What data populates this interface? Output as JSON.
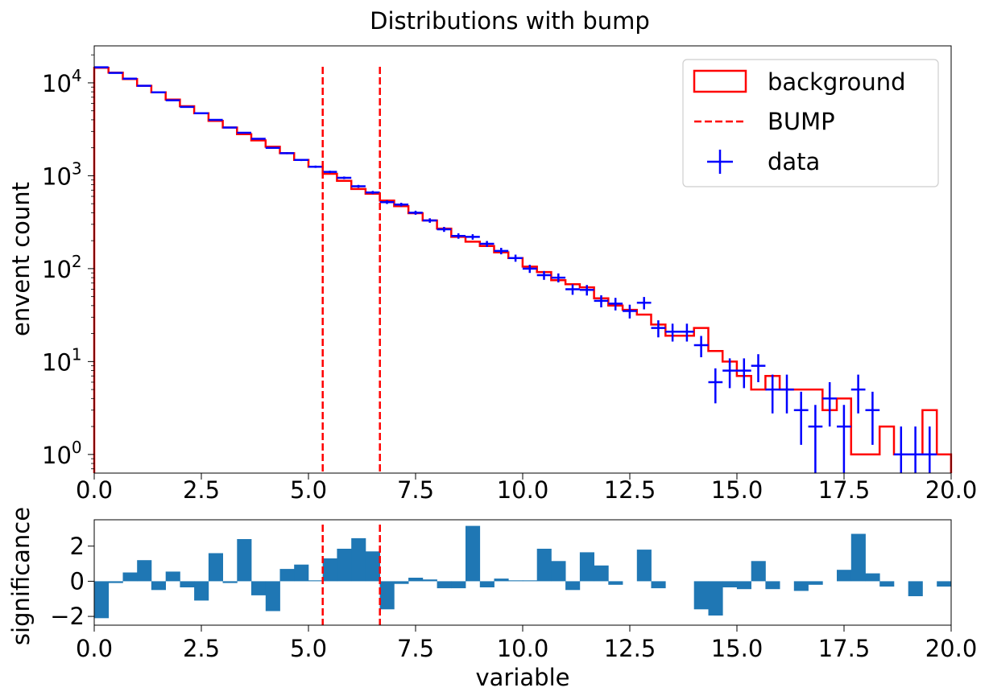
{
  "chart_data": [
    {
      "type": "step-histogram",
      "title": "Distributions with bump",
      "ylabel": "envent count",
      "yscale": "log",
      "xlim": [
        0,
        20
      ],
      "ylim": [
        0.63,
        25000
      ],
      "x_ticks": [
        "0.0",
        "2.5",
        "5.0",
        "7.5",
        "10.0",
        "12.5",
        "15.0",
        "17.5",
        "20.0"
      ],
      "y_ticks": [
        {
          "base": "10",
          "exp": "0"
        },
        {
          "base": "10",
          "exp": "1"
        },
        {
          "base": "10",
          "exp": "2"
        },
        {
          "base": "10",
          "exp": "3"
        },
        {
          "base": "10",
          "exp": "4"
        }
      ],
      "legend": {
        "placement": "top-right",
        "entries": [
          {
            "label": "background",
            "style": "red-rect-outline"
          },
          {
            "label": "BUMP",
            "style": "red-dashed-line"
          },
          {
            "label": "data",
            "style": "blue-errorbar"
          }
        ]
      },
      "bin_width": 0.3333,
      "background_counts": [
        14500,
        12900,
        11000,
        9300,
        7900,
        6600,
        5600,
        4700,
        3900,
        3300,
        2800,
        2400,
        2050,
        1750,
        1480,
        1250,
        1050,
        880,
        720,
        640,
        540,
        470,
        395,
        330,
        270,
        220,
        195,
        175,
        150,
        130,
        105,
        92,
        75,
        68,
        63,
        48,
        40,
        36,
        32,
        25,
        19,
        19,
        23,
        13,
        10,
        7,
        5,
        7,
        5,
        5,
        5,
        3,
        4,
        1,
        1,
        2,
        1,
        1,
        3,
        1
      ],
      "data_counts": [
        14700,
        12800,
        11100,
        9300,
        7900,
        6500,
        5500,
        4700,
        3990,
        3300,
        2900,
        2500,
        2000,
        1750,
        1480,
        1250,
        1100,
        950,
        770,
        660,
        520,
        490,
        400,
        330,
        265,
        225,
        220,
        185,
        155,
        130,
        100,
        85,
        80,
        60,
        59,
        45,
        42,
        35,
        43,
        23,
        21,
        21,
        15,
        6,
        8,
        8,
        9,
        5,
        5,
        3,
        2,
        4,
        2,
        5,
        3,
        0,
        1,
        1,
        1,
        0
      ],
      "bump": {
        "label": "BUMP",
        "x_range": [
          5.333,
          6.667
        ],
        "color": "#ff0000"
      },
      "colors": {
        "background": "#ff0000",
        "data": "#0000ff"
      }
    },
    {
      "type": "bar",
      "xlabel": "variable",
      "ylabel": "significance",
      "xlim": [
        0,
        20
      ],
      "ylim": [
        -2.5,
        3.5
      ],
      "x_ticks": [
        "0.0",
        "2.5",
        "5.0",
        "7.5",
        "10.0",
        "12.5",
        "15.0",
        "17.5",
        "20.0"
      ],
      "y_ticks": [
        {
          "value": 2,
          "label": "2"
        },
        {
          "value": 0,
          "label": "0"
        },
        {
          "value": -2,
          "label": "−2"
        }
      ],
      "bin_width": 0.3333,
      "values": [
        -2.1,
        -0.1,
        0.5,
        1.2,
        -0.5,
        0.55,
        -0.35,
        -1.1,
        1.6,
        -0.1,
        2.4,
        -0.8,
        -1.7,
        0.7,
        0.95,
        0.05,
        1.3,
        1.85,
        2.45,
        1.7,
        -1.6,
        -0.15,
        0.2,
        0.1,
        -0.4,
        -0.4,
        3.15,
        -0.35,
        0.15,
        0.05,
        0.05,
        1.85,
        1.15,
        -0.5,
        1.65,
        0.9,
        -0.2,
        0.0,
        1.8,
        -0.4,
        0.0,
        0.0,
        -1.6,
        -1.95,
        -0.35,
        -0.45,
        1.15,
        -0.45,
        0.0,
        -0.55,
        -0.2,
        0.0,
        0.65,
        2.7,
        0.45,
        -0.3,
        0.0,
        -0.85,
        0.0,
        -0.3
      ],
      "bump": {
        "x_range": [
          5.333,
          6.667
        ],
        "color": "#ff0000"
      },
      "colors": {
        "bars": "#1f77b4"
      }
    }
  ]
}
